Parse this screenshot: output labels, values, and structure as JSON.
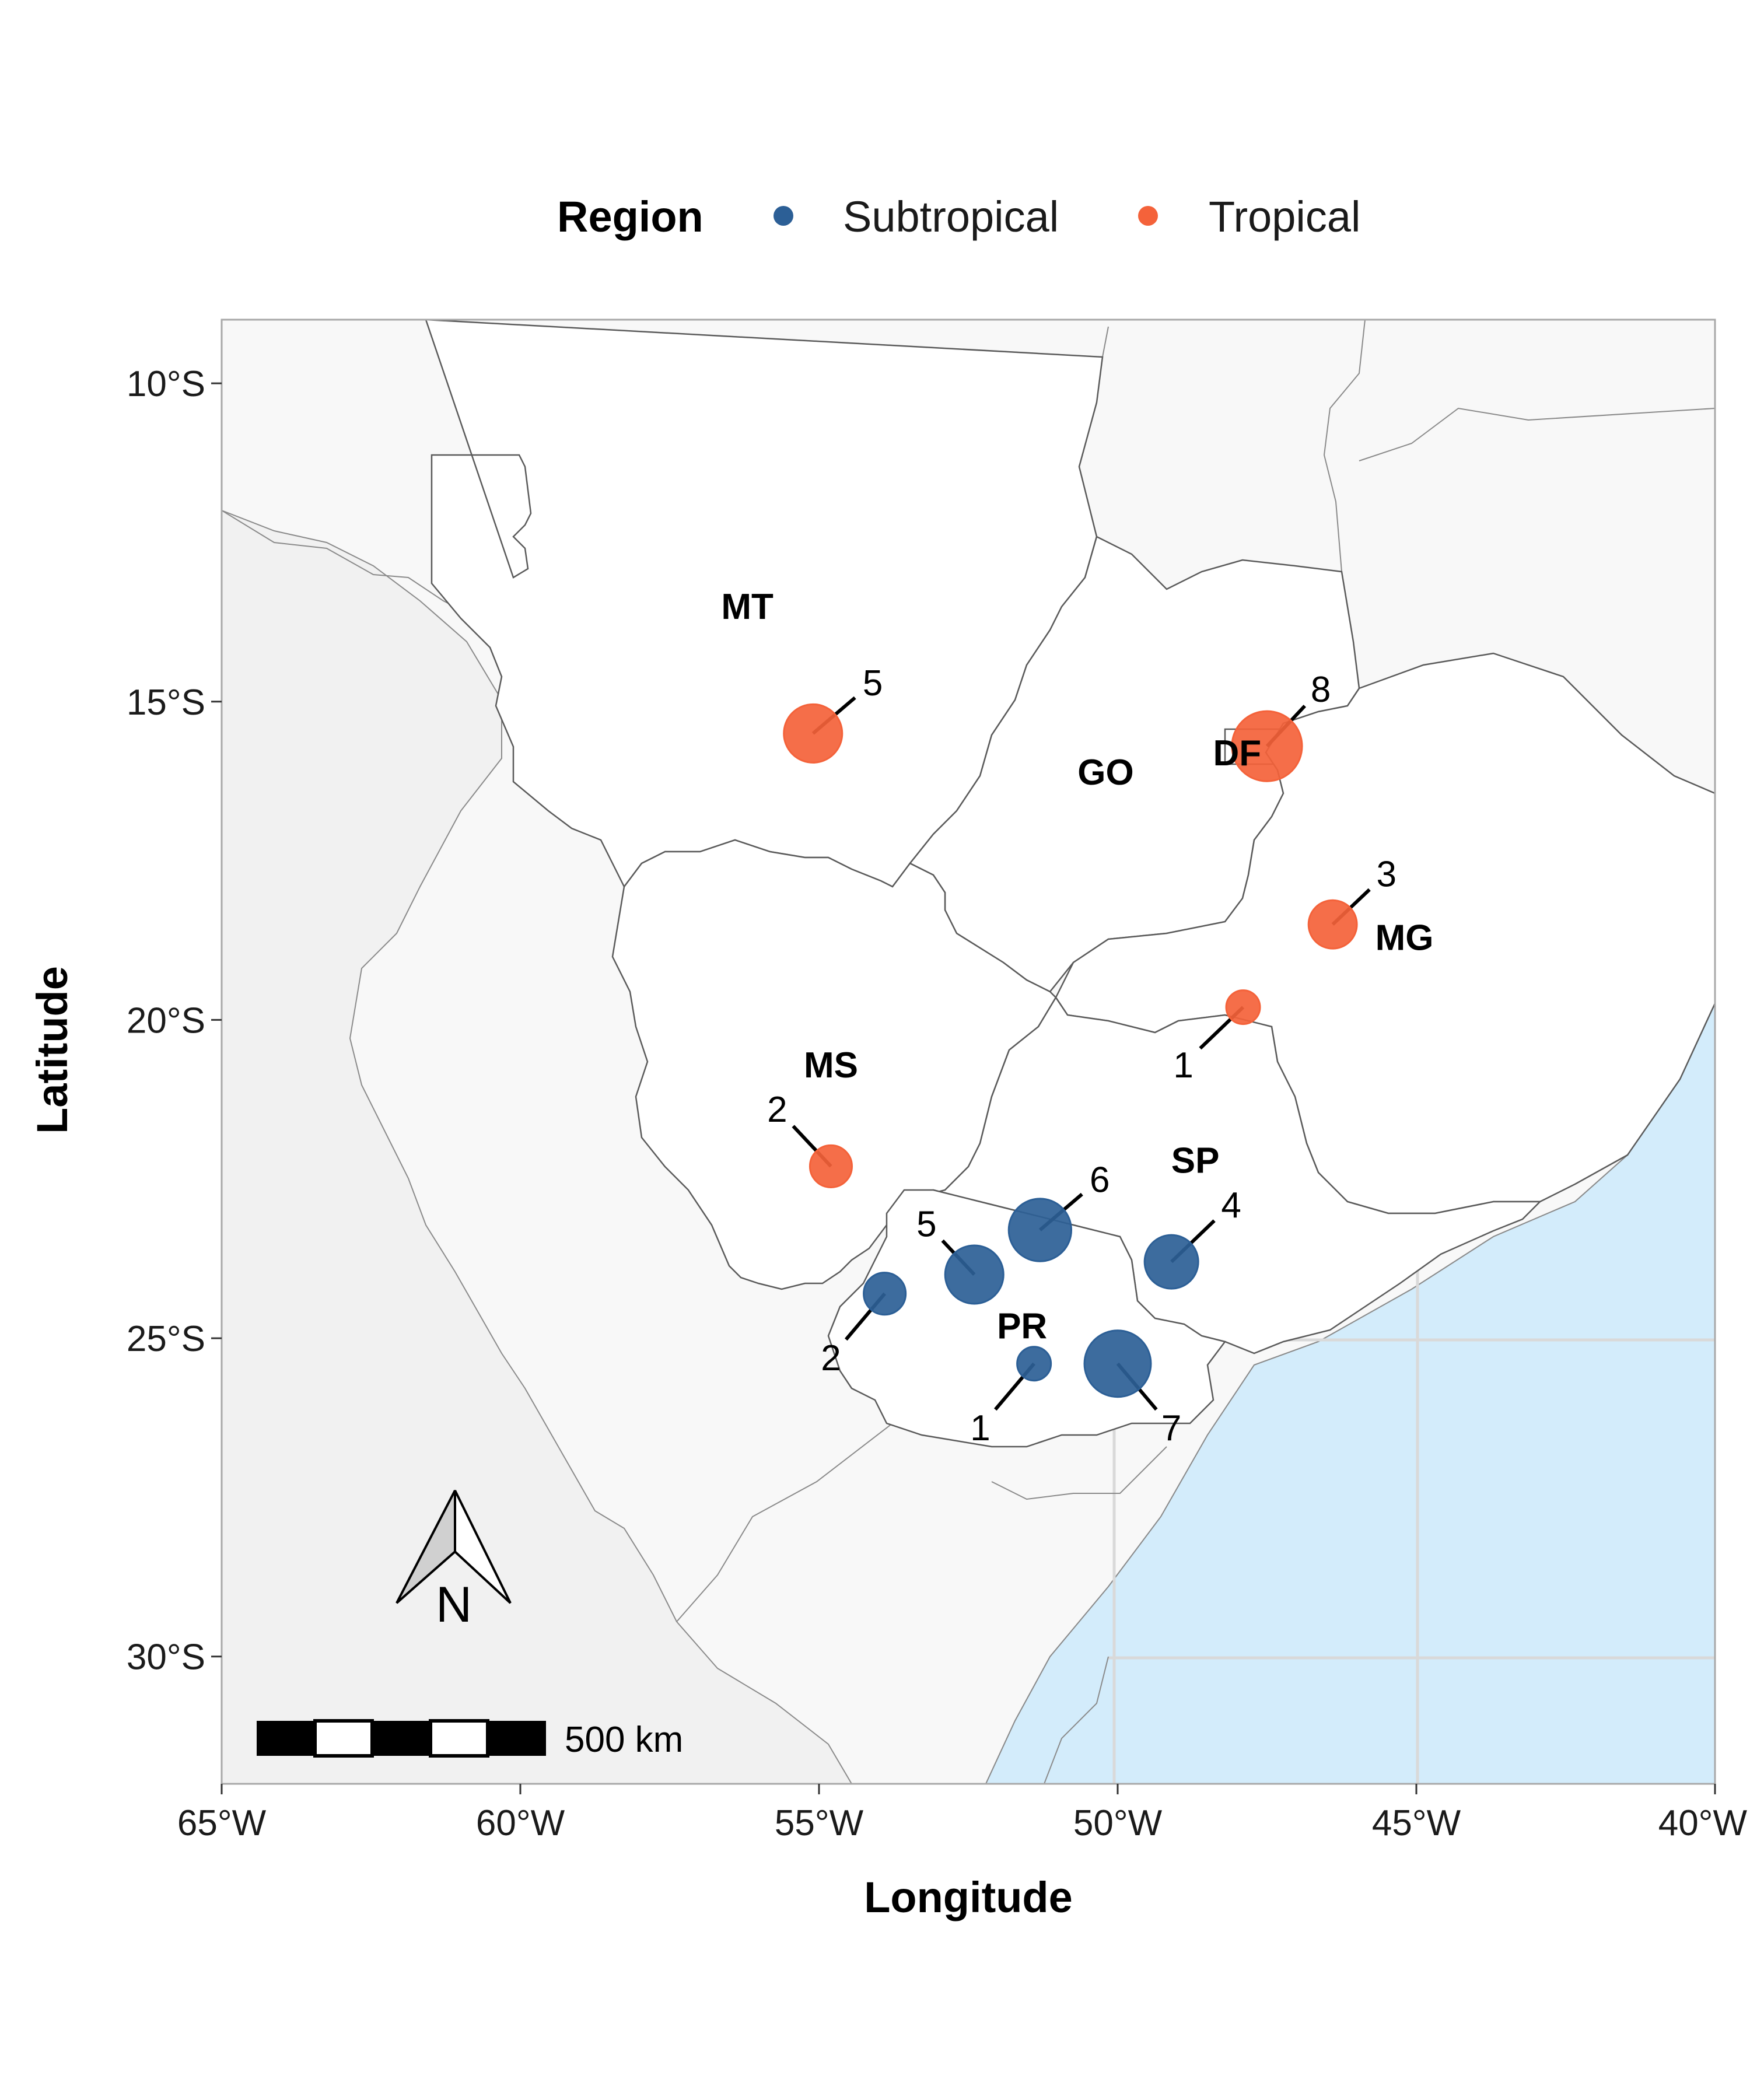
{
  "legend": {
    "title": "Region",
    "items": [
      {
        "label": "Subtropical",
        "color": "#2c5f96"
      },
      {
        "label": "Tropical",
        "color": "#f4623a"
      }
    ]
  },
  "axes": {
    "xlabel": "Longitude",
    "ylabel": "Latitude",
    "xlim": [
      -65,
      -40
    ],
    "ylim": [
      -32,
      -9
    ],
    "x_ticks": [
      {
        "value": -65,
        "label": "65°W"
      },
      {
        "value": -60,
        "label": "60°W"
      },
      {
        "value": -55,
        "label": "55°W"
      },
      {
        "value": -50,
        "label": "50°W"
      },
      {
        "value": -45,
        "label": "45°W"
      },
      {
        "value": -40,
        "label": "40°W"
      }
    ],
    "y_ticks": [
      {
        "value": -10,
        "label": "10°S"
      },
      {
        "value": -15,
        "label": "15°S"
      },
      {
        "value": -20,
        "label": "20°S"
      },
      {
        "value": -25,
        "label": "25°S"
      },
      {
        "value": -30,
        "label": "30°S"
      }
    ]
  },
  "states": [
    {
      "abbr": "MT",
      "lon": -56.2,
      "lat": -13.5
    },
    {
      "abbr": "GO",
      "lon": -50.2,
      "lat": -16.1
    },
    {
      "abbr": "DF",
      "lon": -48.0,
      "lat": -15.8
    },
    {
      "abbr": "MG",
      "lon": -45.2,
      "lat": -18.7
    },
    {
      "abbr": "MS",
      "lon": -54.8,
      "lat": -20.7
    },
    {
      "abbr": "SP",
      "lon": -48.7,
      "lat": -22.2
    },
    {
      "abbr": "PR",
      "lon": -51.6,
      "lat": -24.8
    }
  ],
  "chart_data": {
    "type": "scatter",
    "x_label": "Longitude",
    "y_label": "Latitude",
    "series": [
      {
        "name": "Subtropical",
        "color": "#2c5f96",
        "points": [
          {
            "lon": -51.3,
            "lat": -23.3,
            "count": 6,
            "label_lon": -50.3,
            "label_lat": -22.5
          },
          {
            "lon": -52.4,
            "lat": -24.0,
            "count": 5,
            "label_lon": -53.2,
            "label_lat": -23.2
          },
          {
            "lon": -49.1,
            "lat": -23.8,
            "count": 4,
            "label_lon": -48.1,
            "label_lat": -22.9
          },
          {
            "lon": -53.9,
            "lat": -24.3,
            "count": 2,
            "label_lon": -54.8,
            "label_lat": -25.3
          },
          {
            "lon": -51.4,
            "lat": -25.4,
            "count": 1,
            "label_lon": -52.3,
            "label_lat": -26.4
          },
          {
            "lon": -50.0,
            "lat": -25.4,
            "count": 7,
            "label_lon": -49.1,
            "label_lat": -26.4
          }
        ]
      },
      {
        "name": "Tropical",
        "color": "#f4623a",
        "points": [
          {
            "lon": -55.1,
            "lat": -15.5,
            "count": 5,
            "label_lon": -54.1,
            "label_lat": -14.7
          },
          {
            "lon": -47.5,
            "lat": -15.7,
            "count": 8,
            "label_lon": -46.6,
            "label_lat": -14.8
          },
          {
            "lon": -46.4,
            "lat": -18.5,
            "count": 3,
            "label_lon": -45.5,
            "label_lat": -17.7
          },
          {
            "lon": -47.9,
            "lat": -19.8,
            "count": 1,
            "label_lon": -48.9,
            "label_lat": -20.7
          },
          {
            "lon": -54.8,
            "lat": -22.3,
            "count": 2,
            "label_lon": -55.7,
            "label_lat": -21.4
          }
        ]
      }
    ]
  },
  "scalebar": {
    "label": "500 km"
  },
  "north_arrow": {
    "label": "N"
  },
  "colors": {
    "study_states": "#ffffff",
    "other_brazil_states": "#f8f8f8",
    "outside_brazil": "#f1f1f1",
    "ocean": "#d3ecfb",
    "borders": "#6b6b6b",
    "graticule": "#d9d9d9"
  }
}
